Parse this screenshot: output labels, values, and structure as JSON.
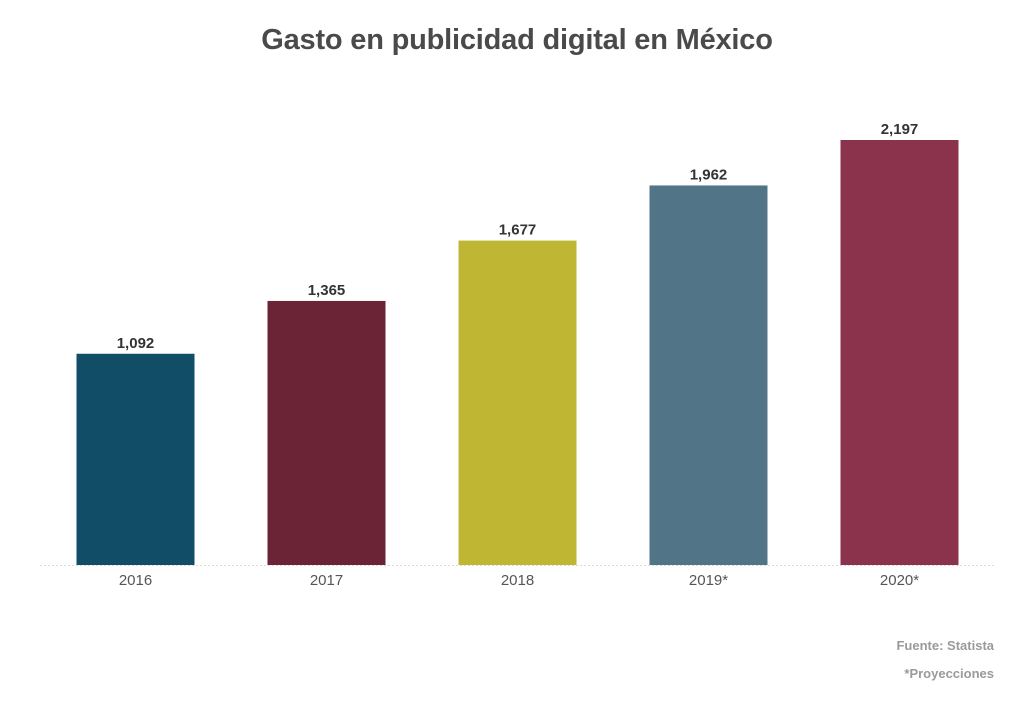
{
  "chart_data": {
    "type": "bar",
    "title": "Gasto en publicidad digital en México",
    "categories": [
      "2016",
      "2017",
      "2018",
      "2019*",
      "2020*"
    ],
    "values": [
      1092,
      1365,
      1677,
      1962,
      2197
    ],
    "value_labels": [
      "1,092",
      "1,365",
      "1,677",
      "1,962",
      "2,197"
    ],
    "colors": [
      "#114d66",
      "#6b2436",
      "#bfb733",
      "#527487",
      "#8b324c"
    ],
    "xlabel": "",
    "ylabel": "",
    "ylim": [
      0,
      2197
    ],
    "grid": false,
    "legend": false
  },
  "footer": {
    "source": "Fuente: Statista",
    "note": "*Proyecciones"
  }
}
